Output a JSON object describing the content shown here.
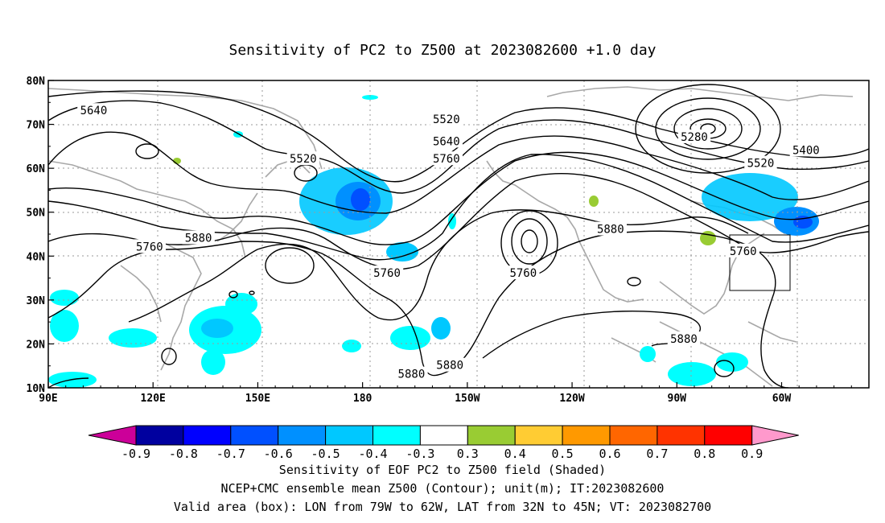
{
  "title": "Sensitivity of PC2 to Z500 at 2023082600 +1.0 day",
  "axes": {
    "x_ticks": [
      "90E",
      "120E",
      "150E",
      "180",
      "150W",
      "120W",
      "90W",
      "60W"
    ],
    "y_ticks": [
      "10N",
      "20N",
      "30N",
      "40N",
      "50N",
      "60N",
      "70N",
      "80N"
    ],
    "lon_range": [
      90,
      325
    ],
    "lat_range": [
      10,
      80
    ],
    "grid": true
  },
  "contour_labels": [
    {
      "text": "5640",
      "lon": 103,
      "lat": 73
    },
    {
      "text": "5520",
      "lon": 163,
      "lat": 62
    },
    {
      "text": "5760",
      "lon": 119,
      "lat": 42
    },
    {
      "text": "5880",
      "lon": 133,
      "lat": 44
    },
    {
      "text": "5760",
      "lon": 187,
      "lat": 36
    },
    {
      "text": "5880",
      "lon": 194,
      "lat": 13
    },
    {
      "text": "5520",
      "lon": 204,
      "lat": 71
    },
    {
      "text": "5640",
      "lon": 204,
      "lat": 66
    },
    {
      "text": "5760",
      "lon": 204,
      "lat": 62
    },
    {
      "text": "5760",
      "lon": 226,
      "lat": 36
    },
    {
      "text": "5880",
      "lon": 205,
      "lat": 15
    },
    {
      "text": "5880",
      "lon": 251,
      "lat": 46
    },
    {
      "text": "5280",
      "lon": 275,
      "lat": 67
    },
    {
      "text": "5400",
      "lon": 307,
      "lat": 64
    },
    {
      "text": "5520",
      "lon": 294,
      "lat": 61
    },
    {
      "text": "5760",
      "lon": 289,
      "lat": 41
    },
    {
      "text": "5880",
      "lon": 272,
      "lat": 21
    }
  ],
  "valid_box": {
    "lon_min": -79,
    "lon_max": -62,
    "lat_min": 32,
    "lat_max": 45
  },
  "colorbar": {
    "ticks": [
      "-0.9",
      "-0.8",
      "-0.7",
      "-0.6",
      "-0.5",
      "-0.4",
      "-0.3",
      "0.3",
      "0.4",
      "0.5",
      "0.6",
      "0.7",
      "0.8",
      "0.9"
    ],
    "colors": [
      "#00009f",
      "#0000ff",
      "#0050ff",
      "#0090ff",
      "#00c8ff",
      "#00ffff",
      "#ffffff",
      "#99cc33",
      "#ffcc33",
      "#ff9900",
      "#ff6600",
      "#ff3300",
      "#ff0000"
    ],
    "low_arrow_color": "#cc0099",
    "high_arrow_color": "#ff99cc"
  },
  "captions": {
    "line1": "Sensitivity of EOF PC2 to Z500 field (Shaded)",
    "line2": "NCEP+CMC ensemble mean Z500 (Contour); unit(m); IT:2023082600",
    "line3": "Valid area (box): LON from 79W to 62W, LAT from 32N to 45N; VT: 2023082700"
  }
}
